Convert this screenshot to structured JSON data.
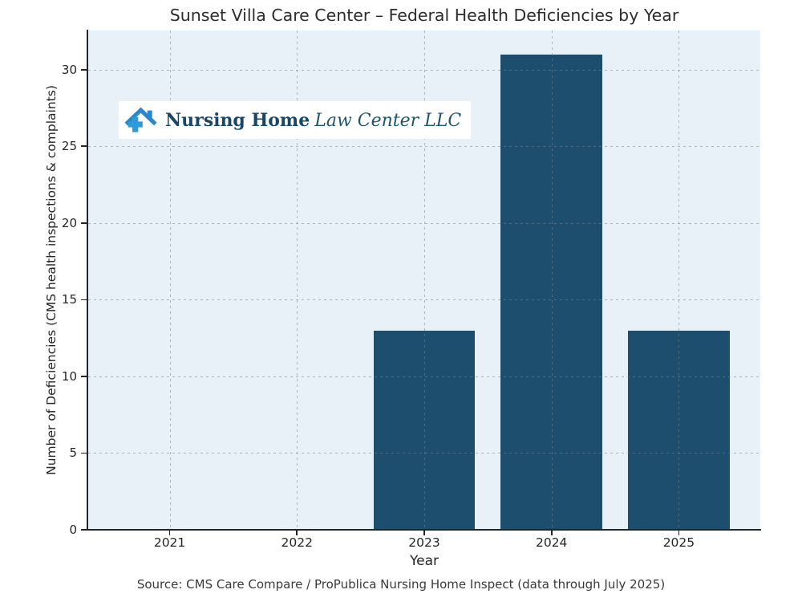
{
  "figure": {
    "source_note": "Source: CMS Care Compare / ProPublica Nursing Home Inspect (data through July 2025)"
  },
  "logo": {
    "icon": "house-with-medical-cross-icon",
    "text_bold": "Nursing Home",
    "text_italic": "Law Center LLC",
    "icon_roof_color": "#2c87c8",
    "icon_cross_color": "#2e9ad8",
    "text_bold_color": "#1b4766",
    "text_italic_color": "#20566e",
    "background_color": "#ffffff"
  },
  "chart_data": {
    "type": "bar",
    "title": "Sunset Villa Care Center – Federal Health Deficiencies by Year",
    "categories": [
      "2021",
      "2022",
      "2023",
      "2024",
      "2025"
    ],
    "values": [
      0,
      0,
      13,
      31,
      13
    ],
    "xlabel": "Year",
    "ylabel": "Number of Deficiencies (CMS health inspections & complaints)",
    "ylim": [
      0,
      32.55
    ],
    "yticks": [
      0,
      5,
      10,
      15,
      20,
      25,
      30
    ],
    "bar_color": "#1d4e6d",
    "plot_bg_color": "#e8f1f8",
    "grid": "dashed gray, horizontal at yticks and vertical at category centers, drawn above bars",
    "legend": "none"
  }
}
